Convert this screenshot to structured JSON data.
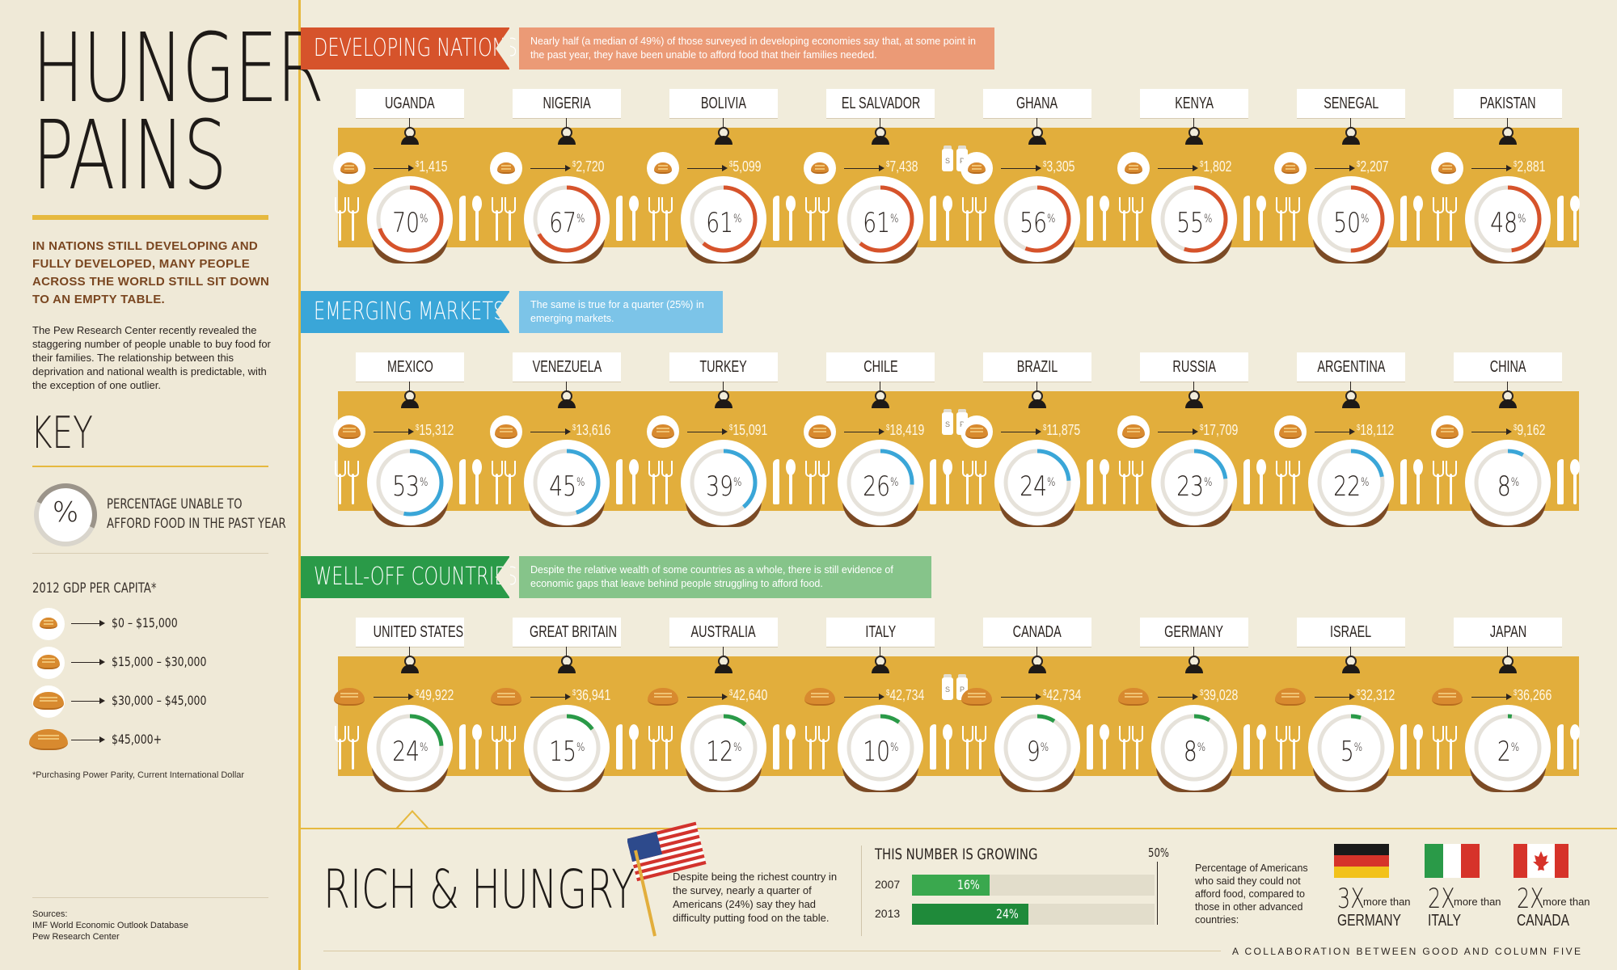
{
  "sidebar": {
    "title_line1": "HUNGER",
    "title_line2": "PAINS",
    "lead": "IN NATIONS STILL DEVELOPING AND FULLY DEVELOPED, MANY PEOPLE ACROSS THE WORLD STILL SIT DOWN TO AN EMPTY TABLE.",
    "body": "The Pew Research Center recently revealed the staggering number of people unable to buy food for their families. The relationship between this deprivation and national wealth is predictable, with the exception of one outlier.",
    "key_title": "KEY",
    "key_symbol": "%",
    "key_label_1": "PERCENTAGE UNABLE TO",
    "key_label_2": "AFFORD FOOD IN THE PAST YEAR",
    "gdp_title": "2012 GDP PER CAPITA*",
    "gdp_ranges": [
      "$0 – $15,000",
      "$15,000 – $30,000",
      "$30,000 – $45,000",
      "$45,000+"
    ],
    "footnote": "*Purchasing Power Parity, Current International Dollar",
    "sources_title": "Sources:",
    "sources": [
      "IMF World Economic Outlook Database",
      "Pew Research Center"
    ]
  },
  "colors": {
    "developing": "#d6532b",
    "emerging": "#3aa6d8",
    "welloff": "#2a9a48",
    "gold": "#e2ae3c"
  },
  "sections": [
    {
      "label": "DEVELOPING NATIONS",
      "note": "Nearly half (a median of 49%) of those surveyed in developing economies say that, at some point in the past year, they have been unable to afford food that their families needed.",
      "countries": [
        {
          "name": "UGANDA",
          "pct": 70,
          "gdp": "1,415"
        },
        {
          "name": "NIGERIA",
          "pct": 67,
          "gdp": "2,720"
        },
        {
          "name": "BOLIVIA",
          "pct": 61,
          "gdp": "5,099"
        },
        {
          "name": "EL SALVADOR",
          "pct": 61,
          "gdp": "7,438"
        },
        {
          "name": "GHANA",
          "pct": 56,
          "gdp": "3,305"
        },
        {
          "name": "KENYA",
          "pct": 55,
          "gdp": "1,802"
        },
        {
          "name": "SENEGAL",
          "pct": 50,
          "gdp": "2,207"
        },
        {
          "name": "PAKISTAN",
          "pct": 48,
          "gdp": "2,881"
        }
      ]
    },
    {
      "label": "EMERGING MARKETS",
      "note": "The same is true for a quarter (25%) in emerging markets.",
      "countries": [
        {
          "name": "MEXICO",
          "pct": 53,
          "gdp": "15,312"
        },
        {
          "name": "VENEZUELA",
          "pct": 45,
          "gdp": "13,616"
        },
        {
          "name": "TURKEY",
          "pct": 39,
          "gdp": "15,091"
        },
        {
          "name": "CHILE",
          "pct": 26,
          "gdp": "18,419"
        },
        {
          "name": "BRAZIL",
          "pct": 24,
          "gdp": "11,875"
        },
        {
          "name": "RUSSIA",
          "pct": 23,
          "gdp": "17,709"
        },
        {
          "name": "ARGENTINA",
          "pct": 22,
          "gdp": "18,112"
        },
        {
          "name": "CHINA",
          "pct": 8,
          "gdp": "9,162"
        }
      ]
    },
    {
      "label": "WELL-OFF COUNTRIES",
      "note": "Despite the relative wealth of some countries as a whole, there is still evidence of economic gaps that leave behind people struggling to afford food.",
      "countries": [
        {
          "name": "UNITED STATES",
          "pct": 24,
          "gdp": "49,922"
        },
        {
          "name": "GREAT BRITAIN",
          "pct": 15,
          "gdp": "36,941"
        },
        {
          "name": "AUSTRALIA",
          "pct": 12,
          "gdp": "42,640"
        },
        {
          "name": "ITALY",
          "pct": 10,
          "gdp": "42,734"
        },
        {
          "name": "CANADA",
          "pct": 9,
          "gdp": "42,734"
        },
        {
          "name": "GERMANY",
          "pct": 8,
          "gdp": "39,028"
        },
        {
          "name": "ISRAEL",
          "pct": 5,
          "gdp": "32,312"
        },
        {
          "name": "JAPAN",
          "pct": 2,
          "gdp": "36,266"
        }
      ]
    }
  ],
  "shakers": {
    "salt": "S",
    "pepper": "P"
  },
  "rich": {
    "title": "RICH & HUNGRY",
    "text": "Despite being the richest country in the survey, nearly a quarter of Americans (24%) say they had difficulty putting food on the table.",
    "growing_title": "THIS NUMBER IS GROWING",
    "axis_max": "50%",
    "rows": [
      {
        "year": "2007",
        "value": 16,
        "label": "16%"
      },
      {
        "year": "2013",
        "value": 24,
        "label": "24%"
      }
    ],
    "compare_text": "Percentage of Americans who said they could not afford food, compared to those in other advanced countries:",
    "compare": [
      {
        "mult": "3X",
        "more": "more than",
        "country": "GERMANY"
      },
      {
        "mult": "2X",
        "more": "more than",
        "country": "ITALY"
      },
      {
        "mult": "2X",
        "more": "more than",
        "country": "CANADA"
      }
    ],
    "credit": "A COLLABORATION BETWEEN GOOD AND COLUMN FIVE"
  }
}
